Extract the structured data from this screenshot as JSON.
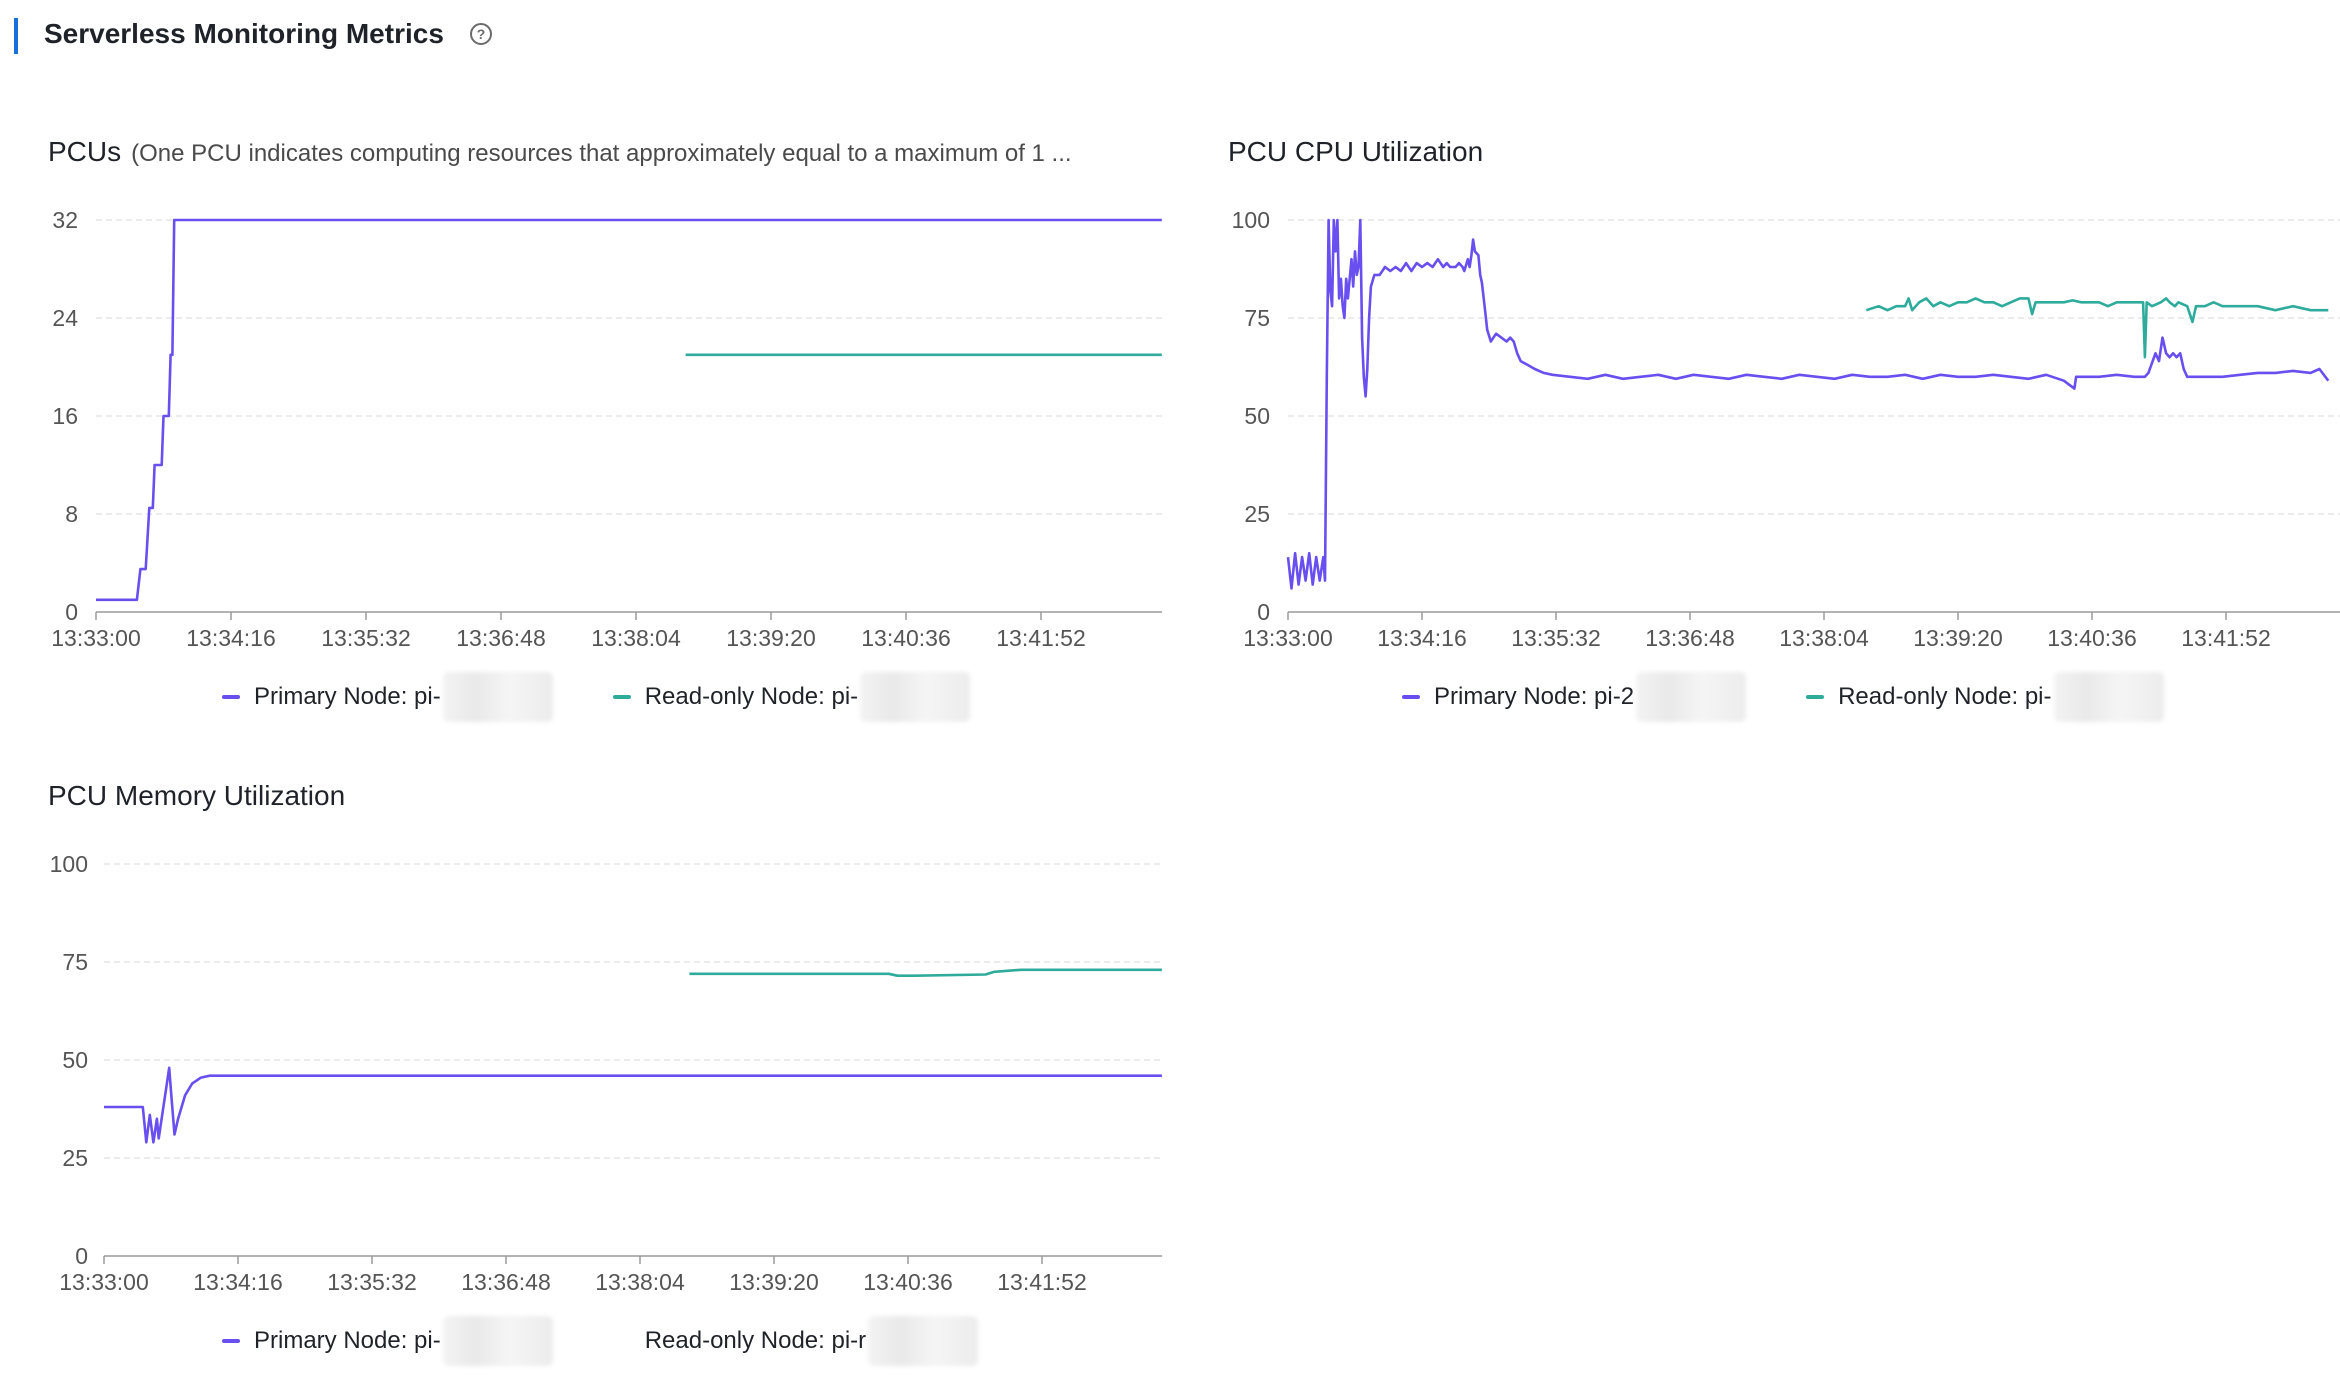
{
  "header": {
    "title": "Serverless Monitoring Metrics",
    "help_icon": "question-circle-icon"
  },
  "colors": {
    "primary": "#6a4ff0",
    "readonly": "#2fab9c",
    "accent": "#1b6fd8"
  },
  "legend": {
    "primary_label": "Primary Node: pi-",
    "readonly_label": "Read-only Node: pi-"
  },
  "charts": [
    {
      "id": "pcus",
      "title": "PCUs",
      "subtitle": "(One PCU indicates computing resources that approximately equal to a maximum of 1 ...",
      "legend": {
        "primary_label": "Primary Node: pi-",
        "readonly_label": "Read-only Node: pi-"
      }
    },
    {
      "id": "cpu",
      "title": "PCU CPU Utilization",
      "legend": {
        "primary_label": "Primary Node: pi-2",
        "readonly_label": "Read-only Node: pi-"
      }
    },
    {
      "id": "memory",
      "title": "PCU Memory Utilization",
      "legend": {
        "primary_label": "Primary Node: pi-",
        "readonly_label": "Read-only Node: pi-r"
      }
    }
  ],
  "chart_data": [
    {
      "type": "line",
      "title": "PCUs",
      "x_ticks": [
        "13:33:00",
        "13:34:16",
        "13:35:32",
        "13:36:48",
        "13:38:04",
        "13:39:20",
        "13:40:36",
        "13:41:52"
      ],
      "x_range_sec": [
        0,
        600
      ],
      "ylim": [
        0,
        32
      ],
      "y_ticks": [
        0,
        8,
        16,
        24,
        32
      ],
      "grid": true,
      "legend_position": "bottom-center",
      "series": [
        {
          "name": "Primary Node: pi-",
          "color": "#6a4ff0",
          "points": [
            [
              0,
              1
            ],
            [
              23,
              1
            ],
            [
              25,
              3.5
            ],
            [
              28,
              3.5
            ],
            [
              30,
              8.5
            ],
            [
              32,
              8.5
            ],
            [
              33,
              12
            ],
            [
              37,
              12
            ],
            [
              38,
              16
            ],
            [
              41,
              16
            ],
            [
              42,
              21
            ],
            [
              43,
              21
            ],
            [
              44,
              32
            ],
            [
              600,
              32
            ]
          ]
        },
        {
          "name": "Read-only Node: pi-",
          "color": "#2fab9c",
          "points": [
            [
              332,
              21
            ],
            [
              600,
              21
            ]
          ]
        }
      ]
    },
    {
      "type": "line",
      "title": "PCU CPU Utilization",
      "x_ticks": [
        "13:33:00",
        "13:34:16",
        "13:35:32",
        "13:36:48",
        "13:38:04",
        "13:39:20",
        "13:40:36",
        "13:41:52"
      ],
      "x_range_sec": [
        0,
        590
      ],
      "ylim": [
        0,
        100
      ],
      "y_ticks": [
        0,
        25,
        50,
        75,
        100
      ],
      "grid": true,
      "legend_position": "bottom-center",
      "series": [
        {
          "name": "Primary Node: pi-2",
          "color": "#6a4ff0",
          "points": [
            [
              0,
              14
            ],
            [
              2,
              6
            ],
            [
              4,
              15
            ],
            [
              6,
              7
            ],
            [
              8,
              14
            ],
            [
              10,
              8
            ],
            [
              12,
              15
            ],
            [
              14,
              7
            ],
            [
              16,
              14
            ],
            [
              18,
              8
            ],
            [
              20,
              14
            ],
            [
              21,
              8
            ],
            [
              22,
              60
            ],
            [
              23,
              100
            ],
            [
              24,
              82
            ],
            [
              25,
              78
            ],
            [
              26,
              100
            ],
            [
              27,
              92
            ],
            [
              28,
              100
            ],
            [
              29,
              80
            ],
            [
              30,
              85
            ],
            [
              31,
              78
            ],
            [
              32,
              75
            ],
            [
              33,
              85
            ],
            [
              34,
              80
            ],
            [
              36,
              90
            ],
            [
              37,
              83
            ],
            [
              38,
              92
            ],
            [
              39,
              86
            ],
            [
              40,
              88
            ],
            [
              41,
              100
            ],
            [
              42,
              70
            ],
            [
              43,
              60
            ],
            [
              44,
              55
            ],
            [
              45,
              62
            ],
            [
              46,
              75
            ],
            [
              47,
              83
            ],
            [
              49,
              86
            ],
            [
              52,
              86
            ],
            [
              55,
              88
            ],
            [
              58,
              87
            ],
            [
              61,
              88
            ],
            [
              64,
              87
            ],
            [
              67,
              89
            ],
            [
              70,
              87
            ],
            [
              73,
              89
            ],
            [
              76,
              88
            ],
            [
              79,
              89
            ],
            [
              82,
              88
            ],
            [
              85,
              90
            ],
            [
              88,
              88
            ],
            [
              90,
              89
            ],
            [
              92,
              88
            ],
            [
              95,
              88
            ],
            [
              97,
              89
            ],
            [
              99,
              88
            ],
            [
              100,
              87
            ],
            [
              102,
              90
            ],
            [
              103,
              88
            ],
            [
              104,
              91
            ],
            [
              105,
              95
            ],
            [
              106,
              92
            ],
            [
              108,
              91
            ],
            [
              109,
              86
            ],
            [
              110,
              84
            ],
            [
              111,
              80
            ],
            [
              112,
              76
            ],
            [
              113,
              72
            ],
            [
              115,
              69
            ],
            [
              118,
              71
            ],
            [
              121,
              70
            ],
            [
              124,
              69
            ],
            [
              126,
              70
            ],
            [
              128,
              69
            ],
            [
              130,
              66
            ],
            [
              132,
              64
            ],
            [
              136,
              63
            ],
            [
              140,
              62
            ],
            [
              145,
              61
            ],
            [
              150,
              60.5
            ],
            [
              160,
              60
            ],
            [
              170,
              59.5
            ],
            [
              180,
              60.5
            ],
            [
              190,
              59.5
            ],
            [
              200,
              60
            ],
            [
              210,
              60.5
            ],
            [
              220,
              59.5
            ],
            [
              230,
              60.5
            ],
            [
              240,
              60
            ],
            [
              250,
              59.5
            ],
            [
              260,
              60.5
            ],
            [
              270,
              60
            ],
            [
              280,
              59.5
            ],
            [
              290,
              60.5
            ],
            [
              300,
              60
            ],
            [
              310,
              59.5
            ],
            [
              320,
              60.5
            ],
            [
              330,
              60
            ],
            [
              340,
              60
            ],
            [
              350,
              60.5
            ],
            [
              360,
              59.5
            ],
            [
              370,
              60.5
            ],
            [
              380,
              60
            ],
            [
              390,
              60
            ],
            [
              400,
              60.5
            ],
            [
              410,
              60
            ],
            [
              420,
              59.5
            ],
            [
              430,
              60.5
            ],
            [
              440,
              59
            ],
            [
              446,
              57
            ],
            [
              447,
              60
            ],
            [
              450,
              60
            ],
            [
              460,
              60
            ],
            [
              470,
              60.5
            ],
            [
              480,
              60
            ],
            [
              486,
              60
            ],
            [
              488,
              61
            ],
            [
              492,
              66
            ],
            [
              494,
              64
            ],
            [
              496,
              70
            ],
            [
              498,
              66
            ],
            [
              500,
              65
            ],
            [
              502,
              66
            ],
            [
              504,
              65
            ],
            [
              506,
              66
            ],
            [
              508,
              62
            ],
            [
              510,
              60
            ],
            [
              520,
              60
            ],
            [
              530,
              60
            ],
            [
              540,
              60.5
            ],
            [
              550,
              61
            ],
            [
              560,
              61
            ],
            [
              570,
              61.5
            ],
            [
              580,
              61
            ],
            [
              585,
              62
            ],
            [
              590,
              59
            ]
          ]
        },
        {
          "name": "Read-only Node: pi-",
          "color": "#2fab9c",
          "points": [
            [
              328,
              77
            ],
            [
              335,
              78
            ],
            [
              340,
              77
            ],
            [
              345,
              78
            ],
            [
              350,
              78
            ],
            [
              352,
              80
            ],
            [
              354,
              77
            ],
            [
              358,
              79
            ],
            [
              362,
              80
            ],
            [
              366,
              78
            ],
            [
              370,
              79
            ],
            [
              375,
              78
            ],
            [
              380,
              79
            ],
            [
              385,
              79
            ],
            [
              390,
              80
            ],
            [
              395,
              79
            ],
            [
              400,
              79
            ],
            [
              405,
              78
            ],
            [
              410,
              79
            ],
            [
              415,
              80
            ],
            [
              420,
              80
            ],
            [
              422,
              76
            ],
            [
              424,
              79
            ],
            [
              430,
              79
            ],
            [
              435,
              79
            ],
            [
              440,
              79
            ],
            [
              445,
              79.5
            ],
            [
              450,
              79
            ],
            [
              455,
              79
            ],
            [
              460,
              79
            ],
            [
              465,
              78
            ],
            [
              470,
              79
            ],
            [
              475,
              79
            ],
            [
              480,
              79
            ],
            [
              485,
              79
            ],
            [
              486,
              65
            ],
            [
              487,
              79
            ],
            [
              490,
              78
            ],
            [
              495,
              79
            ],
            [
              498,
              80
            ],
            [
              500,
              79
            ],
            [
              503,
              78
            ],
            [
              505,
              79
            ],
            [
              510,
              78
            ],
            [
              513,
              74
            ],
            [
              515,
              78
            ],
            [
              520,
              78
            ],
            [
              525,
              79
            ],
            [
              530,
              78
            ],
            [
              540,
              78
            ],
            [
              550,
              78
            ],
            [
              560,
              77
            ],
            [
              570,
              78
            ],
            [
              580,
              77
            ],
            [
              590,
              77
            ]
          ]
        }
      ]
    },
    {
      "type": "line",
      "title": "PCU Memory Utilization",
      "x_ticks": [
        "13:33:00",
        "13:34:16",
        "13:35:32",
        "13:36:48",
        "13:38:04",
        "13:39:20",
        "13:40:36",
        "13:41:52"
      ],
      "x_range_sec": [
        0,
        600
      ],
      "ylim": [
        0,
        100
      ],
      "y_ticks": [
        0,
        25,
        50,
        75,
        100
      ],
      "grid": true,
      "legend_position": "bottom-center",
      "series": [
        {
          "name": "Primary Node: pi-",
          "color": "#6a4ff0",
          "points": [
            [
              0,
              38
            ],
            [
              22,
              38
            ],
            [
              24,
              29
            ],
            [
              26,
              36
            ],
            [
              28,
              29
            ],
            [
              30,
              35
            ],
            [
              31,
              30
            ],
            [
              33,
              36
            ],
            [
              35,
              42
            ],
            [
              37,
              48
            ],
            [
              38,
              42
            ],
            [
              40,
              31
            ],
            [
              42,
              35
            ],
            [
              46,
              41
            ],
            [
              50,
              44
            ],
            [
              55,
              45.5
            ],
            [
              60,
              46
            ],
            [
              100,
              46
            ],
            [
              200,
              46
            ],
            [
              300,
              46
            ],
            [
              400,
              46
            ],
            [
              500,
              46
            ],
            [
              600,
              46
            ]
          ]
        },
        {
          "name": "Read-only Node: pi-r",
          "color": "#2fab9c",
          "points": [
            [
              332,
              72
            ],
            [
              400,
              72
            ],
            [
              445,
              72
            ],
            [
              450,
              71.5
            ],
            [
              460,
              71.5
            ],
            [
              500,
              71.8
            ],
            [
              505,
              72.5
            ],
            [
              520,
              73
            ],
            [
              560,
              73
            ],
            [
              600,
              73
            ]
          ]
        }
      ]
    }
  ]
}
